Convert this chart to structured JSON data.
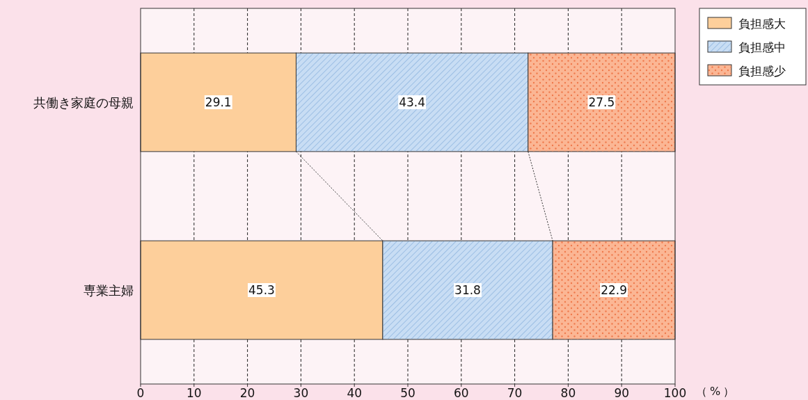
{
  "chart_data": {
    "type": "bar",
    "orientation": "horizontal",
    "stacked": true,
    "categories": [
      "共働き家庭の母親",
      "専業主婦"
    ],
    "series": [
      {
        "name": "負担感大",
        "color": "#fdcf9b",
        "values": [
          29.1,
          45.3
        ]
      },
      {
        "name": "負担感中",
        "color": "#c8ddf4",
        "values": [
          43.4,
          31.8
        ]
      },
      {
        "name": "負担感少",
        "color": "#fbb694",
        "values": [
          27.5,
          22.9
        ]
      }
    ],
    "xlim": [
      0,
      100
    ],
    "xticks": [
      0,
      10,
      20,
      30,
      40,
      50,
      60,
      70,
      80,
      90,
      100
    ],
    "xlabel": "（%）",
    "grid": "x",
    "legend": "top right",
    "data_labels": true
  }
}
